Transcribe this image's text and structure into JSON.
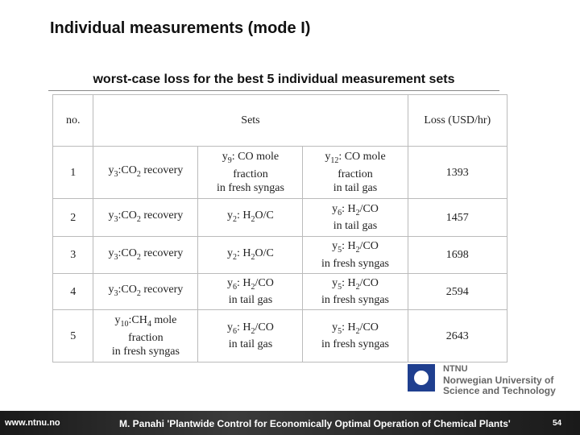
{
  "header": {
    "title": "Individual measurements (mode I)",
    "subtitle": "worst-case loss for the best 5 individual measurement sets"
  },
  "table": {
    "columns": [
      "no.",
      "Sets",
      "Loss (USD/hr)"
    ],
    "rows": [
      {
        "no": "1",
        "loss": 1393,
        "sets": [
          [
            [
              {
                "text": "y"
              },
              {
                "sub": "3"
              },
              {
                "text": ":CO"
              },
              {
                "sub": "2"
              },
              {
                "text": " recovery"
              }
            ]
          ],
          [
            [
              {
                "text": "y"
              },
              {
                "sub": "9"
              },
              {
                "text": ": CO mole"
              }
            ],
            [
              {
                "text": "fraction"
              }
            ],
            [
              {
                "text": "in fresh syngas"
              }
            ]
          ],
          [
            [
              {
                "text": "y"
              },
              {
                "sub": "12"
              },
              {
                "text": ": CO mole"
              }
            ],
            [
              {
                "text": "fraction"
              }
            ],
            [
              {
                "text": "in tail gas"
              }
            ]
          ]
        ]
      },
      {
        "no": "2",
        "loss": 1457,
        "sets": [
          [
            [
              {
                "text": "y"
              },
              {
                "sub": "3"
              },
              {
                "text": ":CO"
              },
              {
                "sub": "2"
              },
              {
                "text": " recovery"
              }
            ]
          ],
          [
            [
              {
                "text": "y"
              },
              {
                "sub": "2"
              },
              {
                "text": ": H"
              },
              {
                "sub": "2"
              },
              {
                "text": "O/C"
              }
            ]
          ],
          [
            [
              {
                "text": "y"
              },
              {
                "sub": "6"
              },
              {
                "text": ": H"
              },
              {
                "sub": "2"
              },
              {
                "text": "/CO"
              }
            ],
            [
              {
                "text": "in tail gas"
              }
            ]
          ]
        ]
      },
      {
        "no": "3",
        "loss": 1698,
        "sets": [
          [
            [
              {
                "text": "y"
              },
              {
                "sub": "3"
              },
              {
                "text": ":CO"
              },
              {
                "sub": "2"
              },
              {
                "text": " recovery"
              }
            ]
          ],
          [
            [
              {
                "text": "y"
              },
              {
                "sub": "2"
              },
              {
                "text": ": H"
              },
              {
                "sub": "2"
              },
              {
                "text": "O/C"
              }
            ]
          ],
          [
            [
              {
                "text": "y"
              },
              {
                "sub": "5"
              },
              {
                "text": ": H"
              },
              {
                "sub": "2"
              },
              {
                "text": "/CO"
              }
            ],
            [
              {
                "text": "in fresh syngas"
              }
            ]
          ]
        ]
      },
      {
        "no": "4",
        "loss": 2594,
        "sets": [
          [
            [
              {
                "text": "y"
              },
              {
                "sub": "3"
              },
              {
                "text": ":CO"
              },
              {
                "sub": "2"
              },
              {
                "text": " recovery"
              }
            ]
          ],
          [
            [
              {
                "text": "y"
              },
              {
                "sub": "6"
              },
              {
                "text": ": H"
              },
              {
                "sub": "2"
              },
              {
                "text": "/CO"
              }
            ],
            [
              {
                "text": "in tail gas"
              }
            ]
          ],
          [
            [
              {
                "text": "y"
              },
              {
                "sub": "5"
              },
              {
                "text": ": H"
              },
              {
                "sub": "2"
              },
              {
                "text": "/CO"
              }
            ],
            [
              {
                "text": "in fresh syngas"
              }
            ]
          ]
        ]
      },
      {
        "no": "5",
        "loss": 2643,
        "sets": [
          [
            [
              {
                "text": "y"
              },
              {
                "sub": "10"
              },
              {
                "text": ":CH"
              },
              {
                "sub": "4"
              },
              {
                "text": " mole"
              }
            ],
            [
              {
                "text": "fraction"
              }
            ],
            [
              {
                "text": "in fresh syngas"
              }
            ]
          ],
          [
            [
              {
                "text": "y"
              },
              {
                "sub": "6"
              },
              {
                "text": ": H"
              },
              {
                "sub": "2"
              },
              {
                "text": "/CO"
              }
            ],
            [
              {
                "text": "in tail gas"
              }
            ]
          ],
          [
            [
              {
                "text": "y"
              },
              {
                "sub": "5"
              },
              {
                "text": ": H"
              },
              {
                "sub": "2"
              },
              {
                "text": "/CO"
              }
            ],
            [
              {
                "text": "in fresh syngas"
              }
            ]
          ]
        ]
      }
    ]
  },
  "logo": {
    "name": "NTNU",
    "lines": [
      "Norwegian University of",
      "Science and Technology"
    ]
  },
  "footer": {
    "url": "www.ntnu.no",
    "citation": "M. Panahi 'Plantwide Control for Economically Optimal Operation of Chemical Plants'",
    "page": "54"
  }
}
